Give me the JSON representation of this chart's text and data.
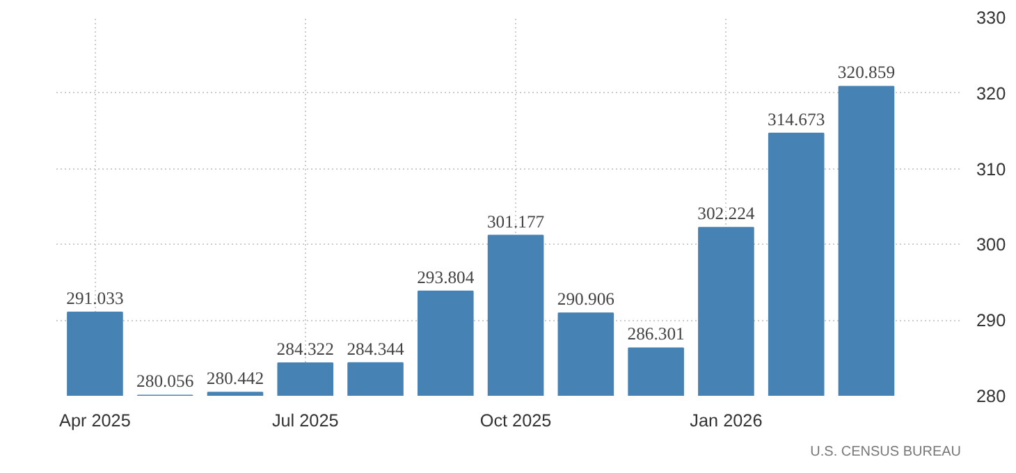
{
  "chart_data": {
    "type": "bar",
    "categories": [
      "Apr 2025",
      null,
      null,
      "Jul 2025",
      null,
      null,
      "Oct 2025",
      null,
      null,
      "Jan 2026",
      null,
      null
    ],
    "values": [
      291.033,
      280.056,
      280.442,
      284.322,
      284.344,
      293.804,
      301.177,
      290.906,
      286.301,
      302.224,
      314.673,
      320.859
    ],
    "color": "#4682b4",
    "data_labels": true,
    "ylim": [
      280,
      330
    ],
    "yticks": [
      280,
      290,
      300,
      310,
      320,
      330
    ],
    "grid": true,
    "annotations": [
      "U.S. CENSUS BUREAU"
    ]
  }
}
